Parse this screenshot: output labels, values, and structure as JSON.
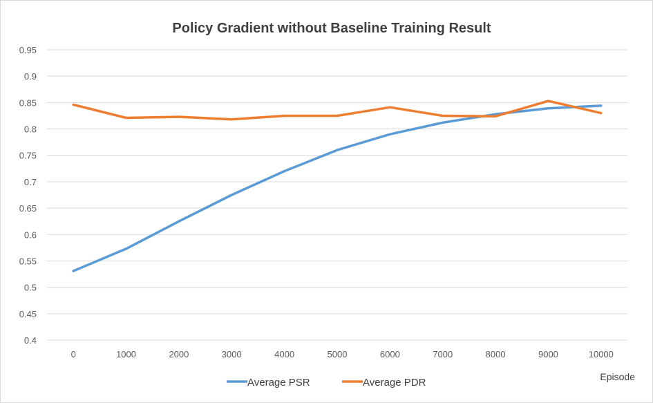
{
  "chart_data": {
    "type": "line",
    "title": "Policy Gradient without Baseline Training Result",
    "xlabel": "Episode",
    "ylabel": "",
    "categories": [
      "0",
      "1000",
      "2000",
      "3000",
      "4000",
      "5000",
      "6000",
      "7000",
      "8000",
      "9000",
      "10000"
    ],
    "ylim": [
      0.4,
      0.95
    ],
    "yticks": [
      "0.4",
      "0.45",
      "0.5",
      "0.55",
      "0.6",
      "0.65",
      "0.7",
      "0.75",
      "0.8",
      "0.85",
      "0.9",
      "0.95"
    ],
    "grid": true,
    "legend_position": "bottom",
    "series": [
      {
        "name": "Average PSR",
        "color": "#5b9bd5",
        "values": [
          0.531,
          0.573,
          0.625,
          0.675,
          0.72,
          0.76,
          0.79,
          0.812,
          0.828,
          0.839,
          0.844
        ]
      },
      {
        "name": "Average PDR",
        "color": "#ed7d31",
        "values": [
          0.846,
          0.821,
          0.823,
          0.818,
          0.825,
          0.825,
          0.841,
          0.825,
          0.824,
          0.853,
          0.83
        ]
      }
    ]
  }
}
